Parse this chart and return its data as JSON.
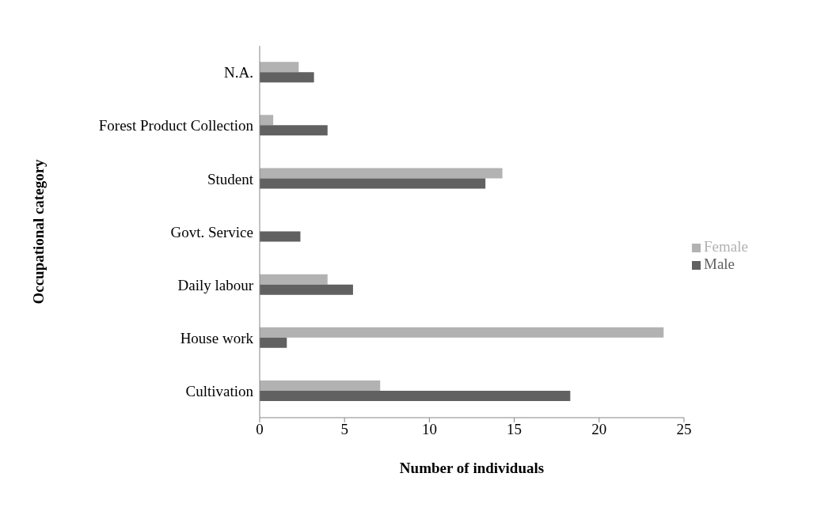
{
  "chart_data": {
    "type": "bar",
    "orientation": "horizontal",
    "xlabel": "Number of individuals",
    "ylabel": "Occupational category",
    "categories": [
      "N.A.",
      "Forest Product Collection",
      "Student",
      "Govt. Service",
      "Daily labour",
      "House work",
      "Cultivation"
    ],
    "series": [
      {
        "name": "Female",
        "color": "#b2b2b2",
        "values": [
          2.3,
          0.8,
          14.3,
          0,
          4,
          23.8,
          7.1
        ]
      },
      {
        "name": "Male",
        "color": "#616161",
        "values": [
          3.2,
          4,
          13.3,
          2.4,
          5.5,
          1.6,
          18.3
        ]
      }
    ],
    "xlim": [
      0,
      25
    ],
    "xticks": [
      0,
      5,
      10,
      15,
      20,
      25
    ],
    "grid": false,
    "legend": "right"
  }
}
